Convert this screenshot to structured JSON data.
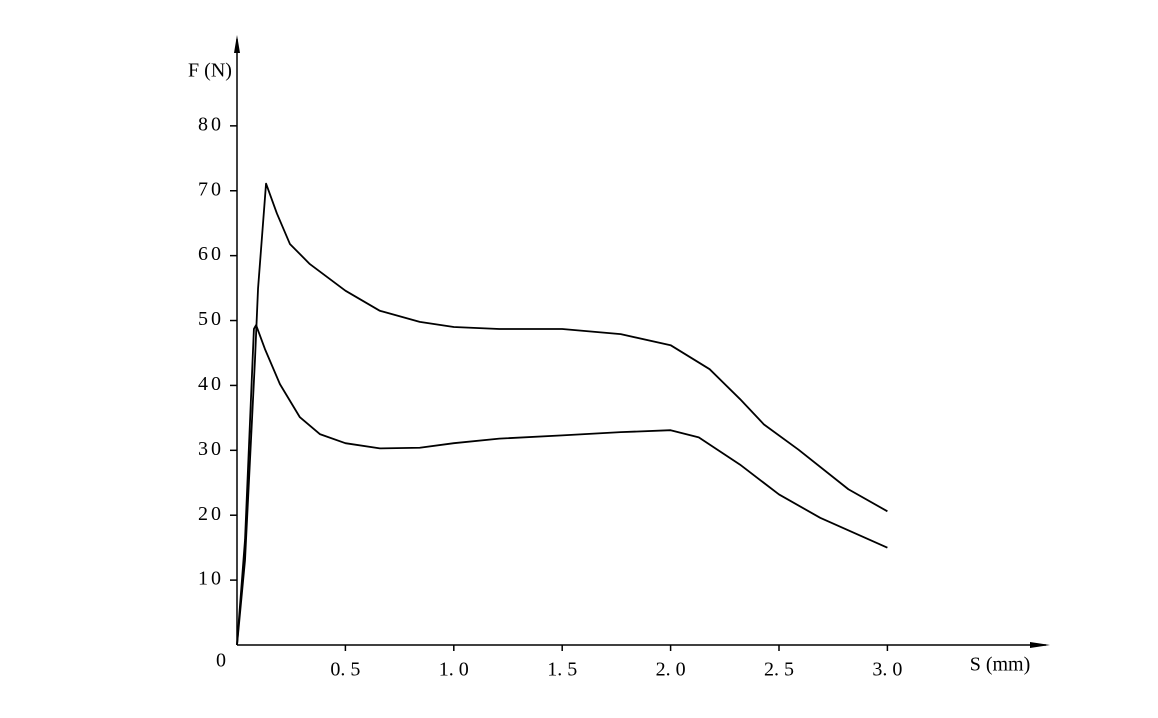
{
  "chart_data": {
    "type": "line",
    "x_label": "S (mm)",
    "y_label": "F (N)",
    "xlim": [
      0,
      3.75
    ],
    "ylim": [
      0,
      94
    ],
    "xticks": [
      {
        "value": 0.5,
        "label": "0. 5"
      },
      {
        "value": 1.0,
        "label": "1. 0"
      },
      {
        "value": 1.5,
        "label": "1. 5"
      },
      {
        "value": 2.0,
        "label": "2. 0"
      },
      {
        "value": 2.5,
        "label": "2. 5"
      },
      {
        "value": 3.0,
        "label": "3. 0"
      }
    ],
    "yticks": [
      0,
      10,
      20,
      30,
      40,
      50,
      60,
      70,
      80
    ],
    "series": [
      {
        "color": "#000000",
        "x": [
          0,
          0.037,
          0.083,
          0.097,
          0.134,
          0.184,
          0.244,
          0.336,
          0.5,
          0.659,
          0.843,
          1.0,
          1.21,
          1.5,
          1.77,
          2.0,
          2.18,
          2.32,
          2.43,
          2.59,
          2.82,
          3.0
        ],
        "values": [
          0,
          13.1,
          44.0,
          54.9,
          71.1,
          66.5,
          61.8,
          58.7,
          54.6,
          51.5,
          49.8,
          49.0,
          48.7,
          48.7,
          47.9,
          46.2,
          42.5,
          37.9,
          34.0,
          30.1,
          24.0,
          20.6
        ]
      },
      {
        "color": "#000000",
        "x": [
          0,
          0.037,
          0.078,
          0.088,
          0.129,
          0.198,
          0.29,
          0.382,
          0.5,
          0.659,
          0.843,
          1.0,
          1.21,
          1.5,
          1.77,
          2.0,
          2.13,
          2.32,
          2.5,
          2.69,
          3.0
        ],
        "values": [
          0,
          16.2,
          48.7,
          49.3,
          45.6,
          40.2,
          35.1,
          32.5,
          31.1,
          30.3,
          30.4,
          31.1,
          31.8,
          32.3,
          32.8,
          33.1,
          32.0,
          27.8,
          23.2,
          19.6,
          15.0
        ]
      }
    ]
  }
}
